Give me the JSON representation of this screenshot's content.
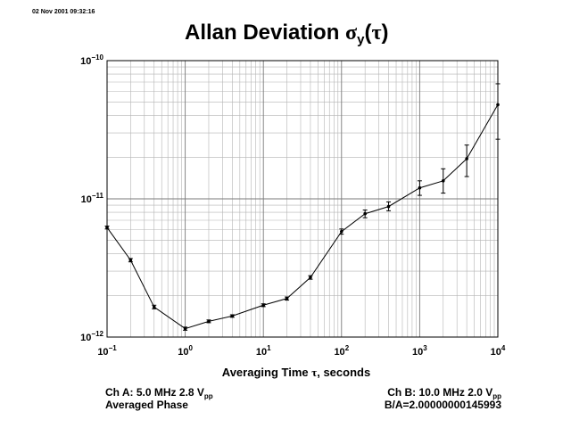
{
  "timestamp": "02 Nov 2001 09:32:16",
  "chart_data": {
    "type": "scatter",
    "title_prefix": "Allan Deviation ",
    "title_sigma": "σ",
    "title_sub": "y",
    "title_paren_open": "(",
    "title_tau": "τ",
    "title_paren_close": ")",
    "xlabel_prefix": "Averaging Time ",
    "xlabel_tau": "τ",
    "xlabel_suffix": ", seconds",
    "x_scale": "log",
    "y_scale": "log",
    "xlim": [
      0.1,
      10000
    ],
    "ylim": [
      1e-12,
      1e-10
    ],
    "grid": true,
    "x_ticks": [
      {
        "base": "10",
        "exp": "−1"
      },
      {
        "base": "10",
        "exp": "0"
      },
      {
        "base": "10",
        "exp": "1"
      },
      {
        "base": "10",
        "exp": "2"
      },
      {
        "base": "10",
        "exp": "3"
      },
      {
        "base": "10",
        "exp": "4"
      }
    ],
    "y_ticks": [
      {
        "base": "10",
        "exp": "−12"
      },
      {
        "base": "10",
        "exp": "−11"
      },
      {
        "base": "10",
        "exp": "−10"
      }
    ],
    "series": [
      {
        "x": [
          0.1,
          0.2,
          0.4,
          1,
          2,
          4,
          10,
          20,
          40,
          100,
          200,
          400,
          1000,
          2000,
          4000,
          10000
        ],
        "y": [
          6.2e-12,
          3.6e-12,
          1.65e-12,
          1.15e-12,
          1.3e-12,
          1.42e-12,
          1.7e-12,
          1.9e-12,
          2.7e-12,
          5.8e-12,
          7.8e-12,
          8.8e-12,
          1.2e-11,
          1.35e-11,
          1.95e-11,
          4.8e-11
        ],
        "err_low": [
          6.05e-12,
          3.5e-12,
          1.6e-12,
          1.12e-12,
          1.27e-12,
          1.39e-12,
          1.66e-12,
          1.85e-12,
          2.62e-12,
          5.55e-12,
          7.3e-12,
          8.2e-12,
          1.06e-11,
          1.1e-11,
          1.45e-11,
          2.7e-11
        ],
        "err_high": [
          6.35e-12,
          3.7e-12,
          1.7e-12,
          1.18e-12,
          1.33e-12,
          1.45e-12,
          1.74e-12,
          1.95e-12,
          2.78e-12,
          6.05e-12,
          8.3e-12,
          9.5e-12,
          1.35e-11,
          1.65e-11,
          2.45e-11,
          6.8e-11
        ]
      }
    ]
  },
  "footer": {
    "left_line1_prefix": "Ch A: 5.0 MHz 2.8 V",
    "left_line1_sub": "pp",
    "left_line2": "Averaged Phase",
    "right_line1_prefix": "Ch B: 10.0 MHz 2.0 V",
    "right_line1_sub": "pp",
    "right_line2": "B/A=2.00000000145993"
  }
}
